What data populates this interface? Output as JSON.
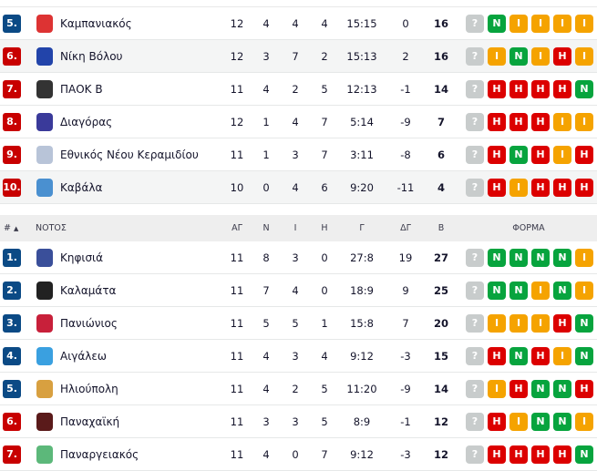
{
  "colors": {
    "rank_promo": "#0b4a85",
    "rank_relegation": "#c80000",
    "win": "#07a43e",
    "draw": "#f5a300",
    "loss": "#dc0000",
    "next": "#c8cccc"
  },
  "form_labels": {
    "W": "N",
    "D": "I",
    "L": "H",
    "?": "?"
  },
  "table_top": {
    "rows": [
      {
        "rank": "5.",
        "zone": "promo",
        "name": "Καμπανιακός",
        "logo_color": "#d33",
        "played": "12",
        "w": "4",
        "d": "4",
        "l": "4",
        "goals": "15:15",
        "gd": "0",
        "pts": "16",
        "form": [
          "?",
          "W",
          "D",
          "D",
          "D",
          "D"
        ],
        "hl": false
      },
      {
        "rank": "6.",
        "zone": "relegation",
        "name": "Νίκη Βόλου",
        "logo_color": "#2244aa",
        "played": "12",
        "w": "3",
        "d": "7",
        "l": "2",
        "goals": "15:13",
        "gd": "2",
        "pts": "16",
        "form": [
          "?",
          "D",
          "W",
          "D",
          "L",
          "D"
        ],
        "hl": true
      },
      {
        "rank": "7.",
        "zone": "relegation",
        "name": "ΠΑΟΚ Β",
        "logo_color": "#333",
        "played": "11",
        "w": "4",
        "d": "2",
        "l": "5",
        "goals": "12:13",
        "gd": "-1",
        "pts": "14",
        "form": [
          "?",
          "L",
          "L",
          "L",
          "L",
          "W"
        ],
        "hl": false
      },
      {
        "rank": "8.",
        "zone": "relegation",
        "name": "Διαγόρας",
        "logo_color": "#3a3a9a",
        "played": "12",
        "w": "1",
        "d": "4",
        "l": "7",
        "goals": "5:14",
        "gd": "-9",
        "pts": "7",
        "form": [
          "?",
          "L",
          "L",
          "L",
          "D",
          "D"
        ],
        "hl": false
      },
      {
        "rank": "9.",
        "zone": "relegation",
        "name": "Εθνικός Νέου Κεραμιδίου",
        "logo_color": "#b8c4d8",
        "played": "11",
        "w": "1",
        "d": "3",
        "l": "7",
        "goals": "3:11",
        "gd": "-8",
        "pts": "6",
        "form": [
          "?",
          "L",
          "W",
          "L",
          "D",
          "L"
        ],
        "hl": false
      },
      {
        "rank": "10.",
        "zone": "relegation",
        "name": "Καβάλα",
        "logo_color": "#4a90d0",
        "played": "10",
        "w": "0",
        "d": "4",
        "l": "6",
        "goals": "9:20",
        "gd": "-11",
        "pts": "4",
        "form": [
          "?",
          "L",
          "D",
          "L",
          "L",
          "L"
        ],
        "hl": true
      }
    ]
  },
  "table_south": {
    "header": {
      "rank": "#",
      "sort_indicator": "▲",
      "group": "ΝΟΤΟΣ",
      "played": "ΑΓ",
      "w": "Ν",
      "d": "Ι",
      "l": "Η",
      "goals": "Γ",
      "gd": "ΔΓ",
      "pts": "Β",
      "form": "ΦΟΡΜΑ"
    },
    "rows": [
      {
        "rank": "1.",
        "zone": "promo",
        "name": "Κηφισιά",
        "logo_color": "#3a4f9a",
        "played": "11",
        "w": "8",
        "d": "3",
        "l": "0",
        "goals": "27:8",
        "gd": "19",
        "pts": "27",
        "form": [
          "?",
          "W",
          "W",
          "W",
          "W",
          "D"
        ],
        "hl": false
      },
      {
        "rank": "2.",
        "zone": "promo",
        "name": "Καλαμάτα",
        "logo_color": "#222",
        "played": "11",
        "w": "7",
        "d": "4",
        "l": "0",
        "goals": "18:9",
        "gd": "9",
        "pts": "25",
        "form": [
          "?",
          "W",
          "W",
          "D",
          "W",
          "D"
        ],
        "hl": false
      },
      {
        "rank": "3.",
        "zone": "promo",
        "name": "Πανιώνιος",
        "logo_color": "#c8203a",
        "played": "11",
        "w": "5",
        "d": "5",
        "l": "1",
        "goals": "15:8",
        "gd": "7",
        "pts": "20",
        "form": [
          "?",
          "D",
          "D",
          "D",
          "L",
          "W"
        ],
        "hl": false
      },
      {
        "rank": "4.",
        "zone": "promo",
        "name": "Αιγάλεω",
        "logo_color": "#3aa0e0",
        "played": "11",
        "w": "4",
        "d": "3",
        "l": "4",
        "goals": "9:12",
        "gd": "-3",
        "pts": "15",
        "form": [
          "?",
          "L",
          "W",
          "L",
          "D",
          "W"
        ],
        "hl": false
      },
      {
        "rank": "5.",
        "zone": "promo",
        "name": "Ηλιούπολη",
        "logo_color": "#d8a040",
        "played": "11",
        "w": "4",
        "d": "2",
        "l": "5",
        "goals": "11:20",
        "gd": "-9",
        "pts": "14",
        "form": [
          "?",
          "D",
          "L",
          "W",
          "W",
          "L"
        ],
        "hl": false
      },
      {
        "rank": "6.",
        "zone": "relegation",
        "name": "Παναχαϊκή",
        "logo_color": "#5a1a1a",
        "played": "11",
        "w": "3",
        "d": "3",
        "l": "5",
        "goals": "8:9",
        "gd": "-1",
        "pts": "12",
        "form": [
          "?",
          "L",
          "D",
          "W",
          "W",
          "D"
        ],
        "hl": false
      },
      {
        "rank": "7.",
        "zone": "relegation",
        "name": "Παναργειακός",
        "logo_color": "#5cb87a",
        "played": "11",
        "w": "4",
        "d": "0",
        "l": "7",
        "goals": "9:12",
        "gd": "-3",
        "pts": "12",
        "form": [
          "?",
          "L",
          "L",
          "L",
          "L",
          "W"
        ],
        "hl": false
      }
    ]
  }
}
